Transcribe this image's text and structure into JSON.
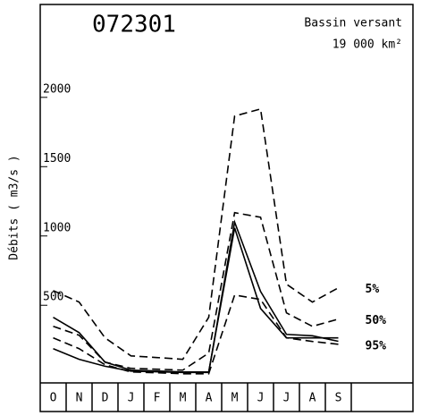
{
  "chart_data": {
    "type": "line",
    "title": "072301",
    "subtitle": [
      "Bassin versant",
      "19 000 km²"
    ],
    "y_label": "Débits ( m3/s )",
    "categories": [
      "O",
      "N",
      "D",
      "J",
      "F",
      "M",
      "A",
      "M",
      "J",
      "J",
      "A",
      "S"
    ],
    "ylim": [
      -60,
      2670
    ],
    "yticks": [
      500,
      1000,
      1500,
      2000
    ],
    "series": [
      {
        "name": "5%",
        "color": "#000",
        "dash": true,
        "values": [
          606,
          523,
          265,
          135,
          123,
          110,
          413,
          1865,
          1916,
          652,
          523,
          626
        ]
      },
      {
        "name": "50%",
        "color": "#000",
        "dash": true,
        "values": [
          348,
          284,
          90,
          45,
          39,
          32,
          155,
          1168,
          1135,
          445,
          348,
          400
        ]
      },
      {
        "name": "95%",
        "color": "#000",
        "dash": true,
        "values": [
          265,
          187,
          71,
          19,
          13,
          6,
          6,
          574,
          542,
          265,
          239,
          219
        ]
      },
      {
        "color": "#000",
        "dash": false,
        "values": [
          413,
          303,
          90,
          32,
          26,
          19,
          19,
          1058,
          477,
          265,
          265,
          265
        ]
      },
      {
        "color": "#000",
        "dash": false,
        "values": [
          187,
          110,
          60,
          25,
          20,
          15,
          15,
          1100,
          600,
          290,
          280,
          240
        ]
      }
    ]
  }
}
